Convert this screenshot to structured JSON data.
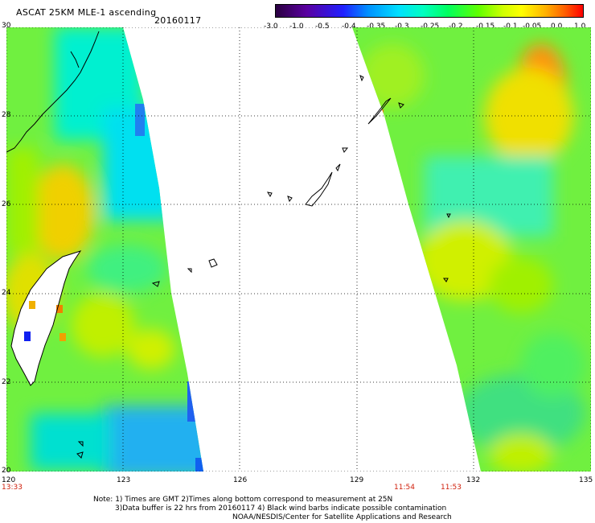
{
  "header": {
    "title": "ASCAT 25KM MLE-1 ascending",
    "date": "20160117"
  },
  "colorbar": {
    "labels": [
      "-3.0",
      "-1.0",
      "-0.5",
      "-0.4",
      "-0.35",
      "-0.3",
      "-0.25",
      "-0.2",
      "-0.15",
      "-0.1",
      "-0.05",
      "0.0",
      "1.0"
    ]
  },
  "axes": {
    "lat_labels": [
      "30",
      "28",
      "26",
      "24",
      "22",
      "20"
    ],
    "lon_labels": [
      "120",
      "123",
      "126",
      "129",
      "132",
      "135"
    ]
  },
  "times": [
    "13:33",
    "11:54",
    "11:53"
  ],
  "notes": [
    "Note: 1) Times are GMT 2)Times along bottom correspond to measurement at 25N",
    "3)Data buffer is 22 hrs from 20160117 4) Black wind barbs indicate possible contamination",
    "NOAA/NESDIS/Center for Satellite Applications and Research"
  ]
}
